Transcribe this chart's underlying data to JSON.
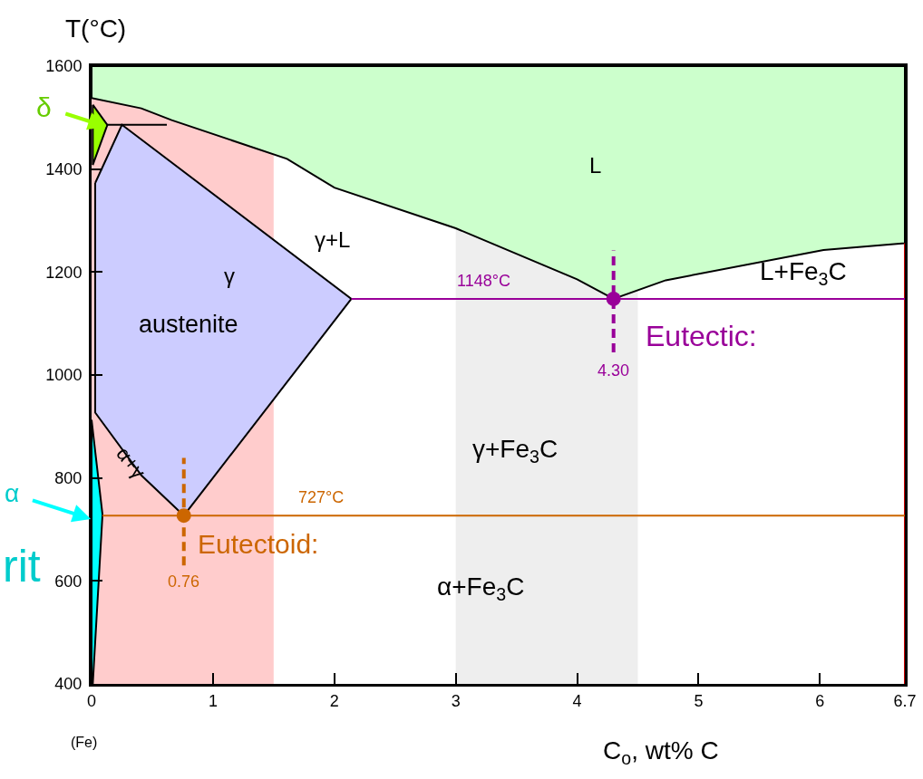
{
  "chart_data": {
    "type": "line",
    "xlabel": "C$_{o}$, wt% C",
    "ylabel": "T(°C)",
    "xlim": [
      0,
      6.7
    ],
    "ylim": [
      400,
      1600
    ],
    "xticks": [
      0,
      1,
      2,
      3,
      4,
      5,
      6,
      6.7
    ],
    "yticks": [
      400,
      600,
      800,
      1000,
      1200,
      1400,
      1600
    ],
    "grid": false,
    "bands": [
      {
        "axis": "x",
        "from": 0,
        "to": 1.5,
        "color": "#ffcccc"
      },
      {
        "axis": "x",
        "from": 3,
        "to": 4.5,
        "color": "#eeeeee"
      }
    ],
    "series": [
      {
        "type": "area",
        "color": "#ccffcc",
        "x": [
          0,
          0,
          0.41,
          0.66,
          1.61,
          2,
          3,
          4,
          4.3,
          4.73,
          6.03,
          6.7,
          6.7,
          0
        ],
        "values": [
          1600,
          1538,
          1518,
          1495,
          1420,
          1364,
          1285,
          1186,
          1148,
          1184,
          1243,
          1256,
          1600,
          1600
        ]
      },
      {
        "type": "area",
        "color": "#ccccff",
        "x": [
          0.03,
          0.25,
          2.14,
          0.76,
          0.41,
          0.03,
          0.03
        ],
        "values": [
          1373,
          1486,
          1148,
          727,
          805,
          927,
          1373
        ]
      },
      {
        "type": "area",
        "color": "#99ff00",
        "x": [
          0.01,
          0.13,
          0.01,
          0.01
        ],
        "values": [
          1525,
          1486,
          1408,
          1525
        ]
      },
      {
        "type": "area",
        "color": "#00ffff",
        "x": [
          0,
          0.09,
          0.01,
          0,
          0
        ],
        "values": [
          913,
          729,
          400,
          400,
          913
        ]
      },
      {
        "color": "#000000",
        "x": [
          0.13,
          0.62
        ],
        "values": [
          1486,
          1486
        ]
      },
      {
        "color": "#cc0000",
        "x": [
          6.7,
          6.7
        ],
        "values": [
          400,
          1256
        ]
      },
      {
        "color": "#990099",
        "x": [
          2.14,
          6.7
        ],
        "values": [
          1148,
          1148
        ]
      },
      {
        "color": "#cc6600",
        "x": [
          0.09,
          6.7
        ],
        "values": [
          727,
          727
        ]
      },
      {
        "color": "#990099",
        "line_style": "dashed",
        "x": [
          4.3,
          4.3
        ],
        "values": [
          1044,
          1242
        ]
      },
      {
        "color": "#cc6600",
        "line_style": "dashed",
        "x": [
          0.76,
          0.76
        ],
        "values": [
          630,
          839
        ]
      },
      {
        "type": "scatter",
        "marker": "circle",
        "color": "#990099",
        "x": [
          4.3
        ],
        "values": [
          1148
        ]
      },
      {
        "type": "scatter",
        "marker": "circle",
        "color": "#cc6600",
        "x": [
          0.76
        ],
        "values": [
          727
        ]
      }
    ],
    "annotations": [
      "L",
      "γ+L",
      "γ",
      "austenite",
      "L+Fe$_{3}$C",
      {
        "text": "1148°C",
        "x": 3.23,
        "y": 1148
      },
      "Eutectic:",
      {
        "text": "4.30",
        "x": 4.3,
        "y": 1044
      },
      "γ+Fe$_{3}$C",
      {
        "text": "727°C",
        "x": 1.89,
        "y": 727
      },
      "Eutectoid:",
      {
        "text": "0.76",
        "x": 0.76,
        "y": 630
      },
      "α+Fe$_{3}$C",
      "α+γ",
      "δ",
      "α",
      "rit",
      "(Fe)"
    ]
  }
}
